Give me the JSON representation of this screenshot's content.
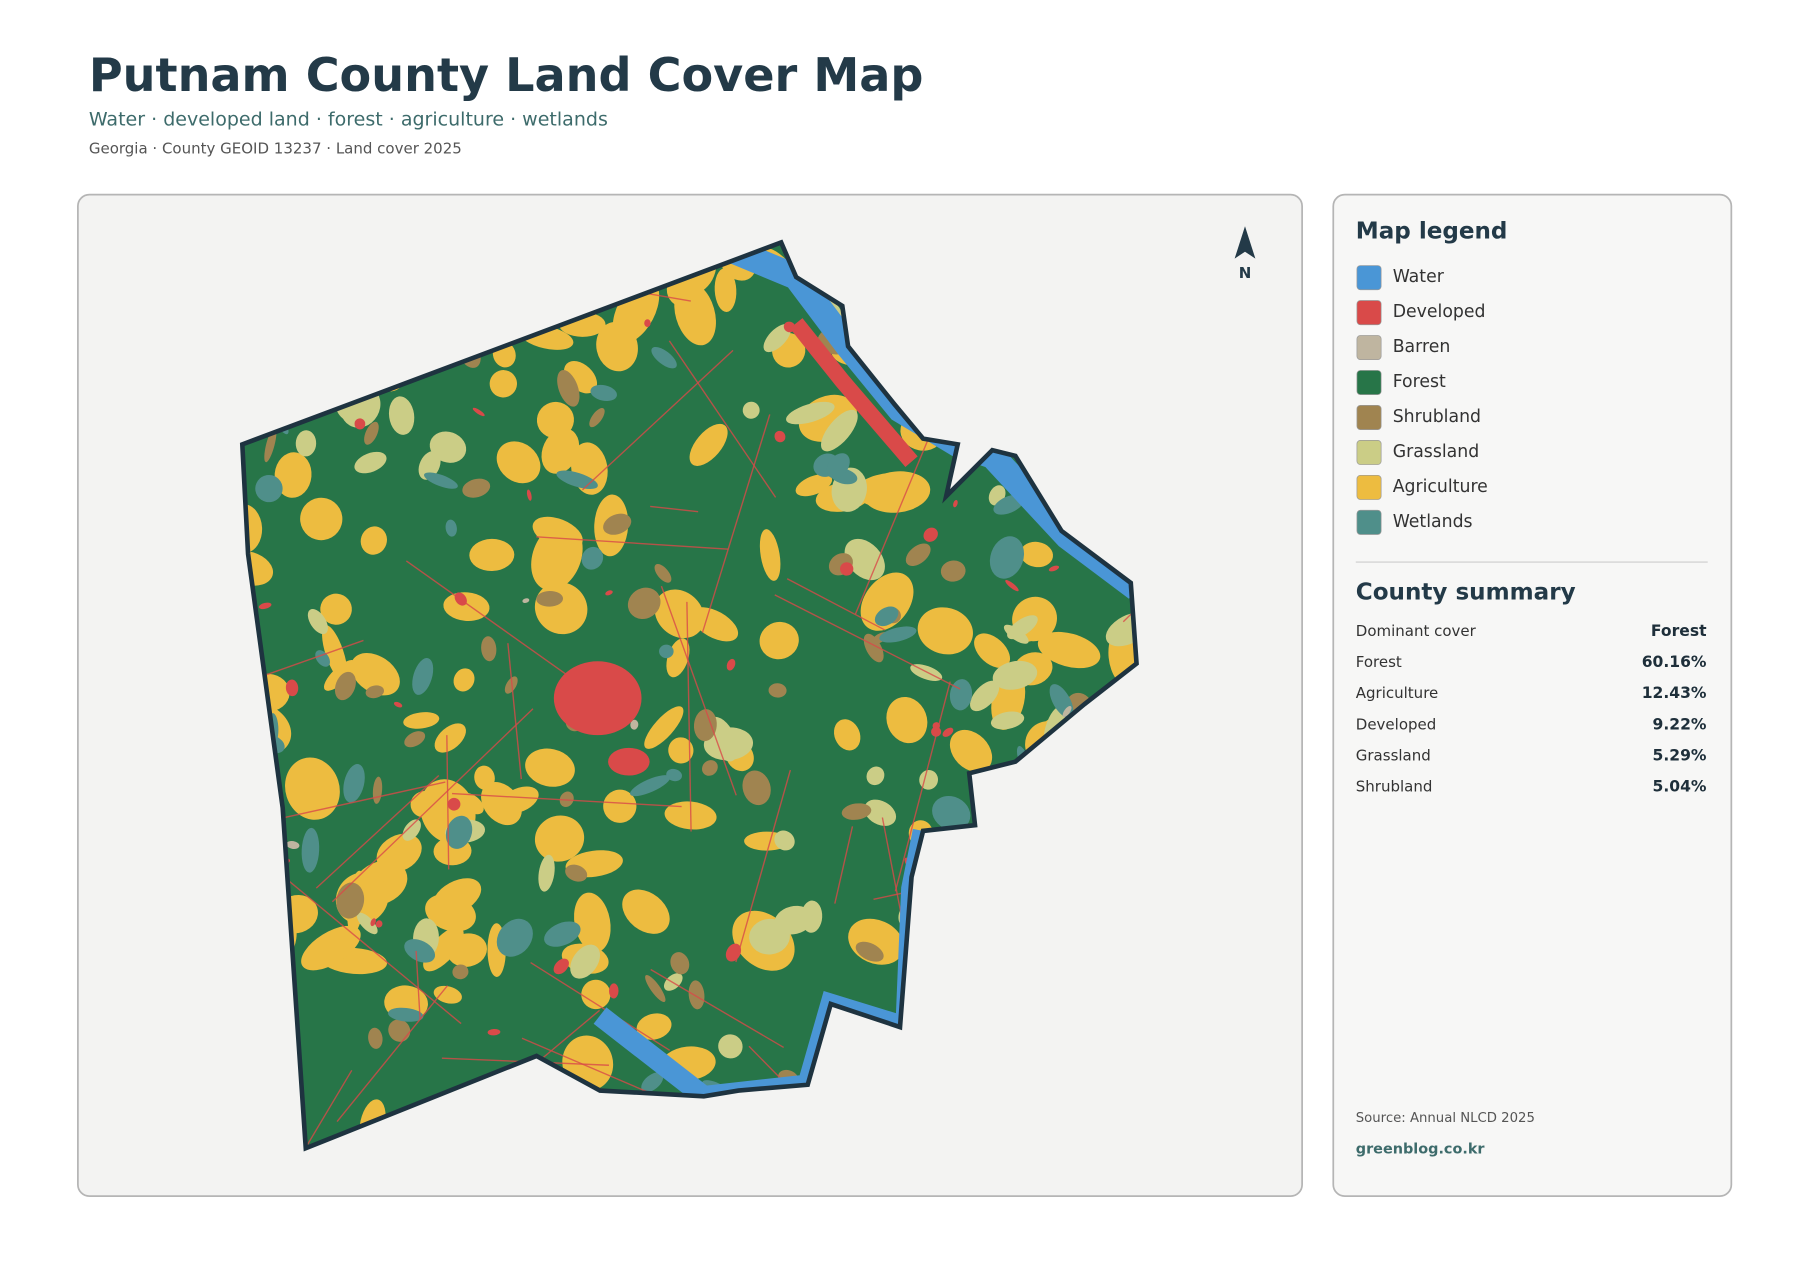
{
  "header": {
    "title": "Putnam County Land Cover Map",
    "subtitle": "Water · developed land · forest · agriculture · wetlands",
    "meta": "Georgia · County GEOID 13237 · Land cover 2025"
  },
  "map": {
    "north_label": "N"
  },
  "legend": {
    "title": "Map legend",
    "items": [
      {
        "name": "Water",
        "color": "#4a96d6"
      },
      {
        "name": "Developed",
        "color": "#d94a49"
      },
      {
        "name": "Barren",
        "color": "#bfb5a0"
      },
      {
        "name": "Forest",
        "color": "#277548"
      },
      {
        "name": "Shrubland",
        "color": "#a08450"
      },
      {
        "name": "Grassland",
        "color": "#cbcd86"
      },
      {
        "name": "Agriculture",
        "color": "#edbc40"
      },
      {
        "name": "Wetlands",
        "color": "#4f8f8a"
      }
    ]
  },
  "summary": {
    "title": "County summary",
    "rows": [
      [
        "Dominant cover",
        "Forest"
      ],
      [
        "Forest",
        "60.16%"
      ],
      [
        "Agriculture",
        "12.43%"
      ],
      [
        "Developed",
        "9.22%"
      ],
      [
        "Grassland",
        "5.29%"
      ],
      [
        "Shrubland",
        "5.04%"
      ]
    ]
  },
  "footer": {
    "source": "Source: Annual NLCD 2025",
    "credit": "greenblog.co.kr"
  }
}
